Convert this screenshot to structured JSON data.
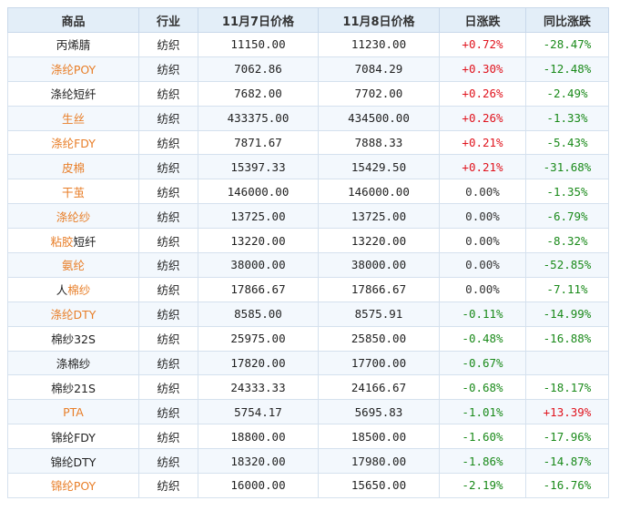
{
  "headers": [
    "商品",
    "行业",
    "11月7日价格",
    "11月8日价格",
    "日涨跌",
    "同比涨跌"
  ],
  "colors": {
    "header_bg": "#e3eef8",
    "positive": "#e0141e",
    "negative": "#1a8a1a",
    "highlight_name": "#e87e28"
  },
  "rows": [
    {
      "name_parts": [
        {
          "text": "丙烯腈",
          "orange": false
        }
      ],
      "industry": "纺织",
      "price_nov7": "11150.00",
      "price_nov8": "11230.00",
      "daily_change": "+0.72%",
      "yoy_change": "-28.47%"
    },
    {
      "name_parts": [
        {
          "text": "涤纶POY",
          "orange": true
        }
      ],
      "industry": "纺织",
      "price_nov7": "7062.86",
      "price_nov8": "7084.29",
      "daily_change": "+0.30%",
      "yoy_change": "-12.48%"
    },
    {
      "name_parts": [
        {
          "text": "涤纶短纤",
          "orange": false
        }
      ],
      "industry": "纺织",
      "price_nov7": "7682.00",
      "price_nov8": "7702.00",
      "daily_change": "+0.26%",
      "yoy_change": "-2.49%"
    },
    {
      "name_parts": [
        {
          "text": "生丝",
          "orange": true
        }
      ],
      "industry": "纺织",
      "price_nov7": "433375.00",
      "price_nov8": "434500.00",
      "daily_change": "+0.26%",
      "yoy_change": "-1.33%"
    },
    {
      "name_parts": [
        {
          "text": "涤纶FDY",
          "orange": true
        }
      ],
      "industry": "纺织",
      "price_nov7": "7871.67",
      "price_nov8": "7888.33",
      "daily_change": "+0.21%",
      "yoy_change": "-5.43%"
    },
    {
      "name_parts": [
        {
          "text": "皮棉",
          "orange": true
        }
      ],
      "industry": "纺织",
      "price_nov7": "15397.33",
      "price_nov8": "15429.50",
      "daily_change": "+0.21%",
      "yoy_change": "-31.68%"
    },
    {
      "name_parts": [
        {
          "text": "干茧",
          "orange": true
        }
      ],
      "industry": "纺织",
      "price_nov7": "146000.00",
      "price_nov8": "146000.00",
      "daily_change": "0.00%",
      "yoy_change": "-1.35%"
    },
    {
      "name_parts": [
        {
          "text": "涤纶纱",
          "orange": true
        }
      ],
      "industry": "纺织",
      "price_nov7": "13725.00",
      "price_nov8": "13725.00",
      "daily_change": "0.00%",
      "yoy_change": "-6.79%"
    },
    {
      "name_parts": [
        {
          "text": "粘胶",
          "orange": true
        },
        {
          "text": "短纤",
          "orange": false
        }
      ],
      "industry": "纺织",
      "price_nov7": "13220.00",
      "price_nov8": "13220.00",
      "daily_change": "0.00%",
      "yoy_change": "-8.32%"
    },
    {
      "name_parts": [
        {
          "text": "氨纶",
          "orange": true
        }
      ],
      "industry": "纺织",
      "price_nov7": "38000.00",
      "price_nov8": "38000.00",
      "daily_change": "0.00%",
      "yoy_change": "-52.85%"
    },
    {
      "name_parts": [
        {
          "text": "人",
          "orange": false
        },
        {
          "text": "棉纱",
          "orange": true
        }
      ],
      "industry": "纺织",
      "price_nov7": "17866.67",
      "price_nov8": "17866.67",
      "daily_change": "0.00%",
      "yoy_change": "-7.11%"
    },
    {
      "name_parts": [
        {
          "text": "涤纶DTY",
          "orange": true
        }
      ],
      "industry": "纺织",
      "price_nov7": "8585.00",
      "price_nov8": "8575.91",
      "daily_change": "-0.11%",
      "yoy_change": "-14.99%"
    },
    {
      "name_parts": [
        {
          "text": "棉纱32S",
          "orange": false
        }
      ],
      "industry": "纺织",
      "price_nov7": "25975.00",
      "price_nov8": "25850.00",
      "daily_change": "-0.48%",
      "yoy_change": "-16.88%"
    },
    {
      "name_parts": [
        {
          "text": "涤棉纱",
          "orange": false
        }
      ],
      "industry": "纺织",
      "price_nov7": "17820.00",
      "price_nov8": "17700.00",
      "daily_change": "-0.67%",
      "yoy_change": ""
    },
    {
      "name_parts": [
        {
          "text": "棉纱21S",
          "orange": false
        }
      ],
      "industry": "纺织",
      "price_nov7": "24333.33",
      "price_nov8": "24166.67",
      "daily_change": "-0.68%",
      "yoy_change": "-18.17%"
    },
    {
      "name_parts": [
        {
          "text": "PTA",
          "orange": true
        }
      ],
      "industry": "纺织",
      "price_nov7": "5754.17",
      "price_nov8": "5695.83",
      "daily_change": "-1.01%",
      "yoy_change": "+13.39%"
    },
    {
      "name_parts": [
        {
          "text": "锦纶FDY",
          "orange": false
        }
      ],
      "industry": "纺织",
      "price_nov7": "18800.00",
      "price_nov8": "18500.00",
      "daily_change": "-1.60%",
      "yoy_change": "-17.96%"
    },
    {
      "name_parts": [
        {
          "text": "锦纶DTY",
          "orange": false
        }
      ],
      "industry": "纺织",
      "price_nov7": "18320.00",
      "price_nov8": "17980.00",
      "daily_change": "-1.86%",
      "yoy_change": "-14.87%"
    },
    {
      "name_parts": [
        {
          "text": "锦纶POY",
          "orange": true
        }
      ],
      "industry": "纺织",
      "price_nov7": "16000.00",
      "price_nov8": "15650.00",
      "daily_change": "-2.19%",
      "yoy_change": "-16.76%"
    }
  ]
}
